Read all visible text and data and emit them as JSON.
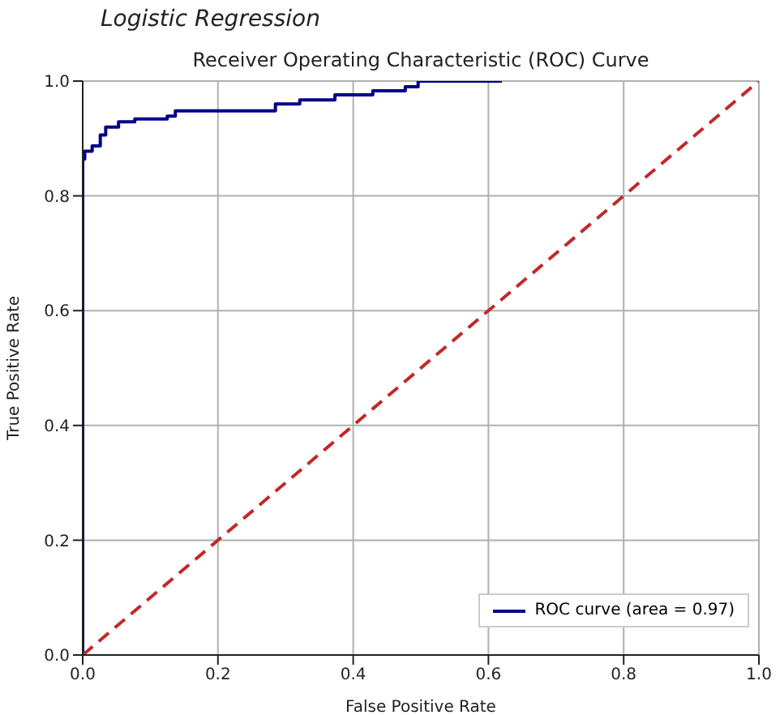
{
  "chart_data": {
    "type": "line",
    "title": "Logistic Regression",
    "subtitle": "Receiver Operating Characteristic (ROC) Curve",
    "xlabel": "False Positive Rate",
    "ylabel": "True Positive Rate",
    "series": [
      {
        "name": "ROC curve (area = 0.97)",
        "type": "step",
        "color": "#00008b",
        "x": [
          0,
          0,
          0.003,
          0.014,
          0.026,
          0.034,
          0.053,
          0.077,
          0.125,
          0.137,
          0.285,
          0.321,
          0.373,
          0.429,
          0.477,
          0.496,
          0.62
        ],
        "values": [
          0,
          0.864,
          0.878,
          0.887,
          0.906,
          0.92,
          0.929,
          0.934,
          0.939,
          0.948,
          0.96,
          0.967,
          0.976,
          0.983,
          0.99,
          1,
          1
        ]
      },
      {
        "type": "line",
        "color": "#c0292b",
        "line_style": "dashed",
        "x": [
          0,
          1
        ],
        "values": [
          0,
          1
        ]
      }
    ],
    "xlim": [
      0,
      1
    ],
    "ylim": [
      0,
      1
    ],
    "xticks": [
      {
        "value": 0,
        "label": "0.0"
      },
      0.2,
      0.4,
      0.6,
      0.8,
      {
        "value": 1,
        "label": "1.0"
      }
    ],
    "yticks": [
      {
        "value": 0,
        "label": "0.0"
      },
      0.2,
      0.4,
      0.6,
      0.8,
      {
        "value": 1,
        "label": "1.0"
      }
    ],
    "grid": true,
    "legend": "bottom right"
  }
}
